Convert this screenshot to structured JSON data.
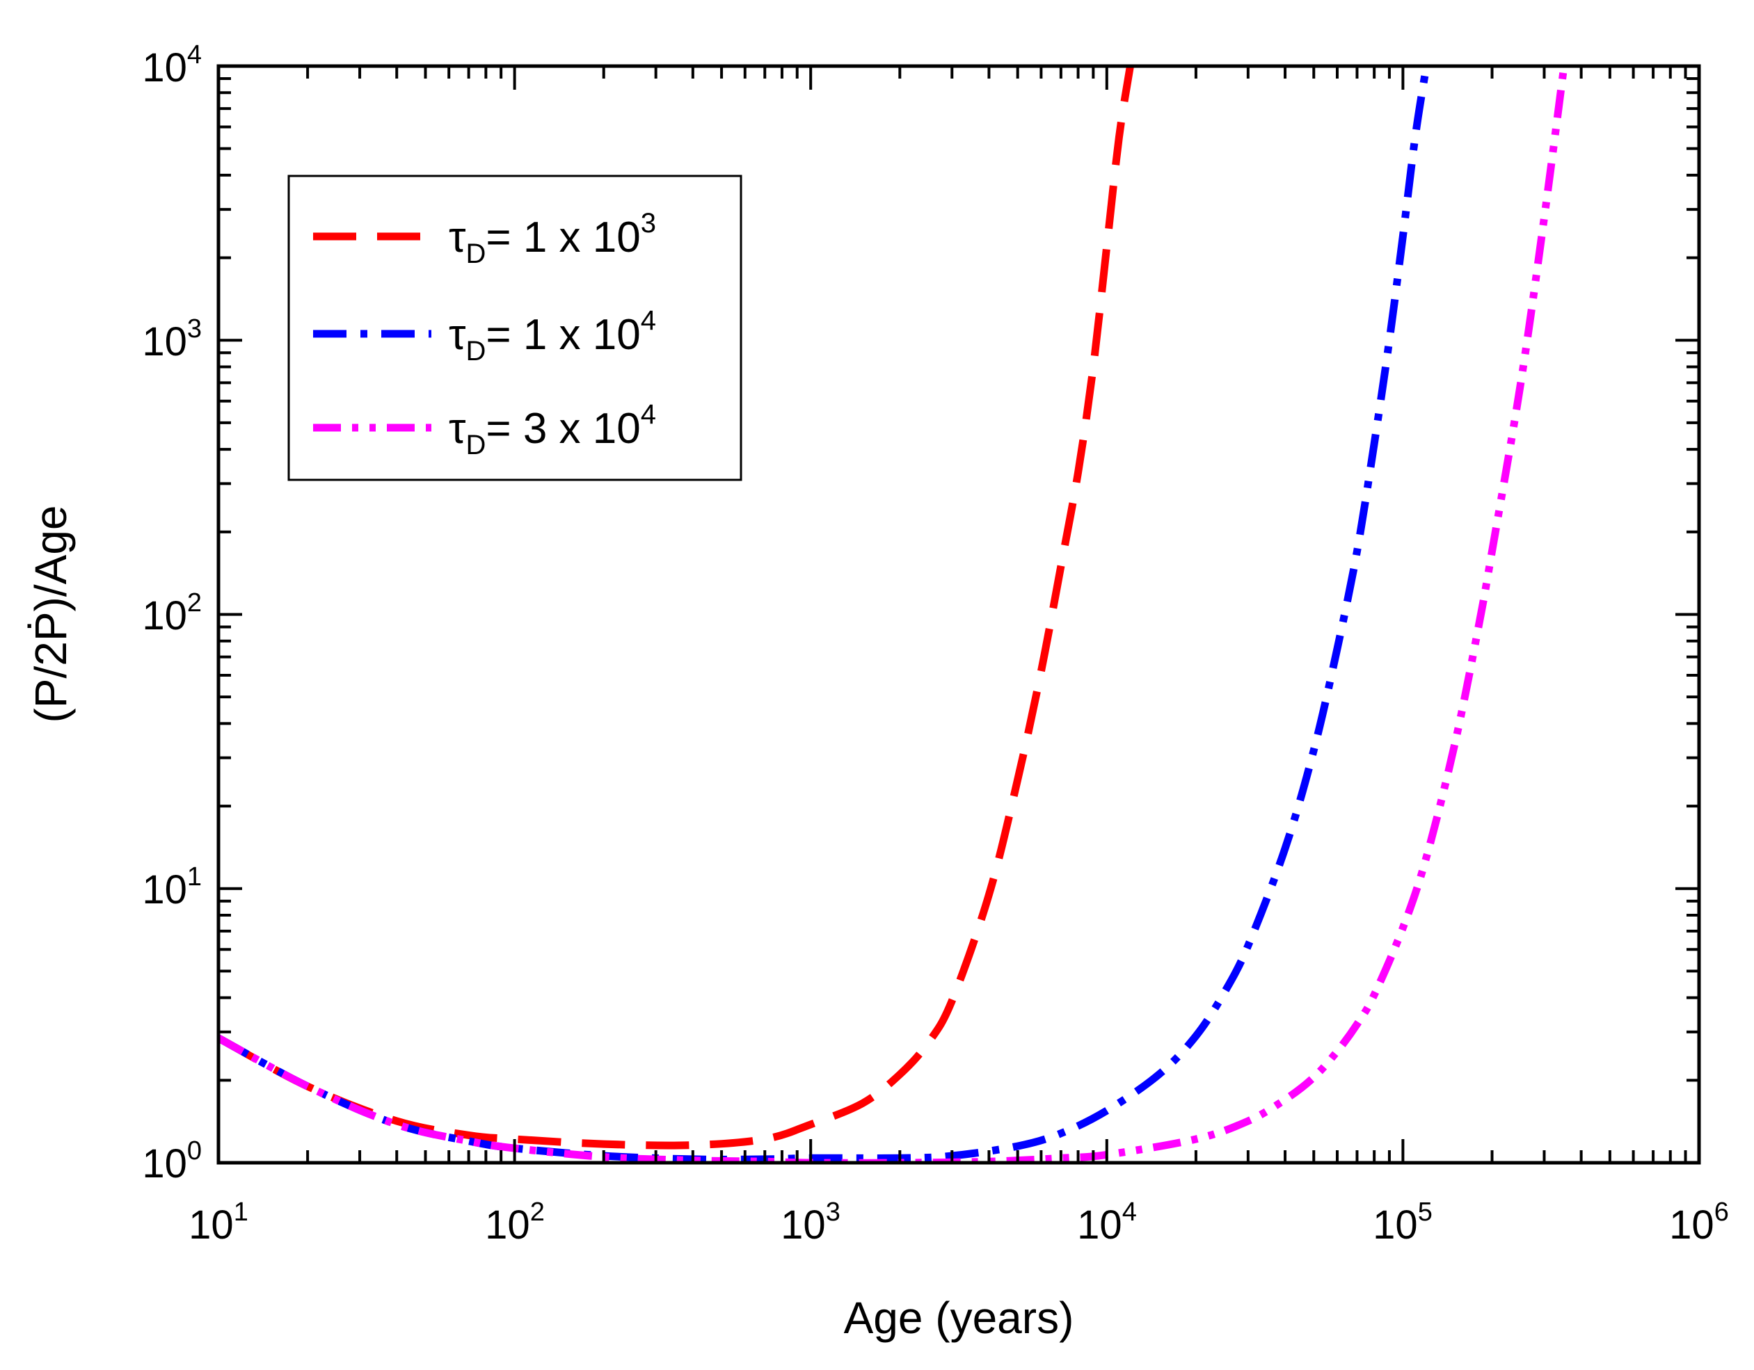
{
  "chart_data": {
    "type": "line",
    "title": "",
    "xlabel": "Age (years)",
    "ylabel": "(P/2Ṗ)/Age",
    "xscale": "log",
    "yscale": "log",
    "xlim": [
      10,
      1000000
    ],
    "ylim": [
      1,
      10000
    ],
    "grid": false,
    "legend_position": "top-left",
    "x_ticks": [
      {
        "base": "10",
        "exp": "1",
        "value": 10
      },
      {
        "base": "10",
        "exp": "2",
        "value": 100
      },
      {
        "base": "10",
        "exp": "3",
        "value": 1000
      },
      {
        "base": "10",
        "exp": "4",
        "value": 10000
      },
      {
        "base": "10",
        "exp": "5",
        "value": 100000
      },
      {
        "base": "10",
        "exp": "6",
        "value": 1000000
      }
    ],
    "y_ticks": [
      {
        "base": "10",
        "exp": "0",
        "value": 1
      },
      {
        "base": "10",
        "exp": "1",
        "value": 10
      },
      {
        "base": "10",
        "exp": "2",
        "value": 100
      },
      {
        "base": "10",
        "exp": "3",
        "value": 1000
      },
      {
        "base": "10",
        "exp": "4",
        "value": 10000
      }
    ],
    "series": [
      {
        "name": "τD = 1 x 10^3",
        "label_prefix": "τ",
        "label_sub": "D",
        "label_main": "= 1 x 10",
        "label_sup": "3",
        "color": "#ff0000",
        "dash": "dash",
        "x": [
          10,
          20,
          40,
          70,
          100,
          200,
          400,
          700,
          1000,
          1500,
          2000,
          2500,
          3000,
          4000,
          5000,
          6000,
          7000,
          8000,
          9000,
          10000,
          11000,
          12000
        ],
        "y": [
          2.85,
          1.9,
          1.42,
          1.26,
          1.22,
          1.17,
          1.16,
          1.22,
          1.38,
          1.65,
          2.1,
          2.75,
          3.9,
          9.5,
          25,
          62,
          150,
          330,
          800,
          2200,
          5500,
          10000
        ]
      },
      {
        "name": "τD = 1 x 10^4",
        "label_prefix": "τ",
        "label_sub": "D",
        "label_main": "= 1 x 10",
        "label_sup": "4",
        "color": "#0000ff",
        "dash": "dash-dot",
        "x": [
          10,
          20,
          40,
          70,
          100,
          200,
          400,
          700,
          1000,
          2000,
          3000,
          5000,
          7000,
          10000,
          15000,
          20000,
          25000,
          30000,
          40000,
          50000,
          60000,
          70000,
          80000,
          90000,
          100000,
          110000,
          120000
        ],
        "y": [
          2.85,
          1.9,
          1.38,
          1.2,
          1.13,
          1.06,
          1.03,
          1.03,
          1.04,
          1.04,
          1.06,
          1.15,
          1.28,
          1.55,
          2.1,
          2.9,
          4.2,
          6.2,
          14,
          32,
          75,
          170,
          420,
          1000,
          2400,
          5500,
          10000
        ]
      },
      {
        "name": "τD = 3 x 10^4",
        "label_prefix": "τ",
        "label_sub": "D",
        "label_main": "= 3 x 10",
        "label_sup": "4",
        "color": "#ff00ff",
        "dash": "dash-dot-dot",
        "x": [
          10,
          20,
          40,
          70,
          100,
          200,
          400,
          700,
          1000,
          2000,
          4000,
          7000,
          10000,
          20000,
          30000,
          40000,
          50000,
          60000,
          70000,
          80000,
          100000,
          120000,
          150000,
          180000,
          200000,
          250000,
          300000,
          350000
        ],
        "y": [
          2.85,
          1.9,
          1.38,
          1.2,
          1.13,
          1.05,
          1.02,
          1.01,
          1.0,
          1.0,
          1.01,
          1.04,
          1.07,
          1.22,
          1.42,
          1.7,
          2.05,
          2.55,
          3.2,
          4.1,
          7.2,
          13,
          34,
          90,
          170,
          700,
          2800,
          10000
        ]
      }
    ]
  }
}
